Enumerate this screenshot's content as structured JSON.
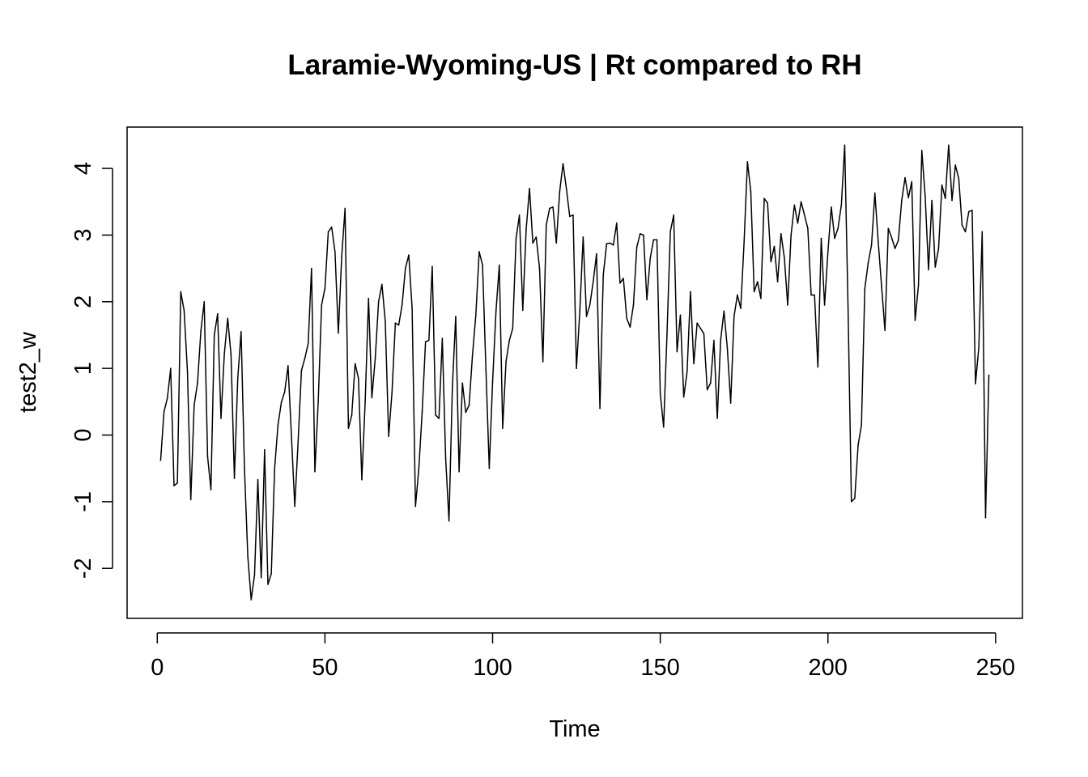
{
  "chart_data": {
    "type": "line",
    "title": "Laramie-Wyoming-US | Rt compared to RH",
    "xlabel": "Time",
    "ylabel": "test2_w",
    "xlim": [
      -9,
      258
    ],
    "ylim": [
      -2.75,
      4.62
    ],
    "x_ticks": [
      0,
      50,
      100,
      150,
      200,
      250
    ],
    "x_tick_labels": [
      "0",
      "50",
      "100",
      "150",
      "200",
      "250"
    ],
    "y_ticks": [
      -2,
      -1,
      0,
      1,
      2,
      3,
      4
    ],
    "y_tick_labels": [
      "-2",
      "-1",
      "0",
      "1",
      "2",
      "3",
      "4"
    ],
    "grid": false,
    "legend": "none",
    "line_color": "#000000",
    "series": [
      {
        "x_start": 1,
        "values": [
          -0.38,
          0.35,
          0.55,
          1.0,
          -0.76,
          -0.72,
          2.15,
          1.87,
          0.95,
          -0.97,
          0.45,
          0.78,
          1.56,
          2.0,
          -0.32,
          -0.82,
          1.5,
          1.82,
          0.25,
          1.22,
          1.75,
          1.2,
          -0.65,
          0.85,
          1.55,
          -0.5,
          -1.82,
          -2.47,
          -2.1,
          -0.67,
          -2.14,
          -0.22,
          -2.24,
          -2.08,
          -0.5,
          0.15,
          0.49,
          0.65,
          1.04,
          0.0,
          -1.07,
          -0.1,
          0.97,
          1.15,
          1.37,
          2.5,
          -0.55,
          0.5,
          1.95,
          2.2,
          3.05,
          3.12,
          2.75,
          1.53,
          2.68,
          3.4,
          0.1,
          0.3,
          1.07,
          0.85,
          -0.67,
          0.5,
          2.05,
          0.56,
          1.15,
          2.0,
          2.26,
          1.7,
          -0.02,
          0.64,
          1.68,
          1.65,
          1.95,
          2.5,
          2.7,
          1.9,
          -1.07,
          -0.5,
          0.35,
          1.4,
          1.42,
          2.53,
          0.3,
          0.25,
          1.45,
          -0.35,
          -1.29,
          0.72,
          1.78,
          -0.55,
          0.78,
          0.34,
          0.45,
          1.2,
          1.8,
          2.75,
          2.55,
          1.0,
          -0.5,
          0.8,
          1.85,
          2.55,
          0.1,
          1.1,
          1.42,
          1.6,
          2.95,
          3.3,
          1.87,
          3.08,
          3.7,
          2.88,
          2.97,
          2.5,
          1.1,
          3.15,
          3.4,
          3.42,
          2.88,
          3.65,
          4.07,
          3.7,
          3.28,
          3.3,
          1.0,
          1.85,
          2.97,
          1.78,
          1.95,
          2.3,
          2.72,
          0.4,
          2.4,
          2.87,
          2.88,
          2.85,
          3.18,
          2.28,
          2.35,
          1.75,
          1.62,
          1.95,
          2.82,
          3.02,
          3.0,
          2.03,
          2.65,
          2.93,
          2.93,
          0.62,
          0.12,
          1.5,
          3.05,
          3.3,
          1.25,
          1.8,
          0.57,
          0.95,
          2.15,
          1.07,
          1.68,
          1.6,
          1.52,
          0.68,
          0.78,
          1.42,
          0.25,
          1.42,
          1.86,
          1.3,
          0.48,
          1.78,
          2.1,
          1.9,
          2.9,
          4.1,
          3.65,
          2.15,
          2.3,
          2.05,
          3.55,
          3.48,
          2.6,
          2.83,
          2.3,
          3.02,
          2.66,
          1.95,
          3.0,
          3.45,
          3.18,
          3.5,
          3.3,
          3.1,
          2.1,
          2.1,
          1.02,
          2.95,
          1.95,
          2.75,
          3.42,
          2.95,
          3.1,
          3.45,
          4.35,
          1.9,
          -1.0,
          -0.95,
          -0.15,
          0.15,
          2.2,
          2.58,
          2.85,
          3.63,
          2.9,
          2.23,
          1.57,
          3.1,
          2.96,
          2.8,
          2.92,
          3.52,
          3.86,
          3.56,
          3.8,
          1.72,
          2.25,
          4.27,
          3.58,
          2.48,
          3.52,
          2.52,
          2.8,
          3.75,
          3.55,
          4.35,
          3.52,
          4.05,
          3.85,
          3.15,
          3.05,
          3.35,
          3.37,
          0.77,
          1.32,
          3.05,
          -1.24,
          0.9
        ]
      }
    ]
  }
}
